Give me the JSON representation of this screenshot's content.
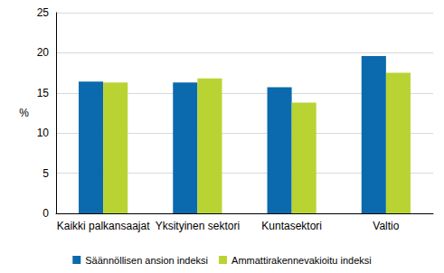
{
  "chart_data": {
    "type": "bar",
    "y_label": "%",
    "categories": [
      "Kaikki palkansaajat",
      "Yksityinen sektori",
      "Kuntasektori",
      "Valtio"
    ],
    "series": [
      {
        "name": "Säännöllisen ansion indeksi",
        "color": "#0a6aad",
        "values": [
          16.4,
          16.3,
          15.7,
          19.6
        ]
      },
      {
        "name": "Ammattirakennevakioitu indeksi",
        "color": "#b9d432",
        "values": [
          16.3,
          16.8,
          13.8,
          17.5
        ]
      }
    ],
    "ylim": [
      0,
      25
    ],
    "yticks": [
      0,
      5,
      10,
      15,
      20,
      25
    ],
    "grid": true,
    "legend": "bottom"
  }
}
